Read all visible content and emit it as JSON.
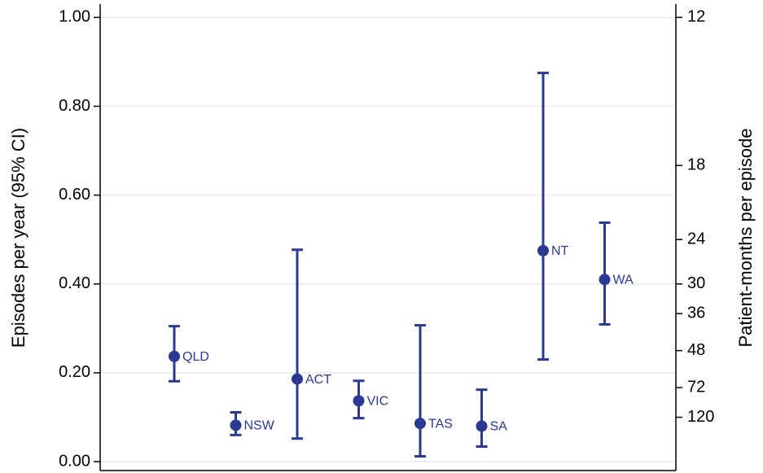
{
  "chart_data": {
    "type": "errorbar-dot",
    "ylabel": "Episodes per year (95% CI)",
    "y2label": "Patient-months per episode",
    "categories": [
      "QLD",
      "NSW",
      "ACT",
      "VIC",
      "TAS",
      "SA",
      "NT",
      "WA"
    ],
    "series": [
      {
        "name": "Episodes per year",
        "color": "#2b3990",
        "values": [
          0.237,
          0.082,
          0.186,
          0.137,
          0.086,
          0.08,
          0.475,
          0.41
        ],
        "lower": [
          0.181,
          0.06,
          0.052,
          0.098,
          0.012,
          0.034,
          0.23,
          0.309
        ],
        "upper": [
          0.305,
          0.111,
          0.477,
          0.182,
          0.307,
          0.162,
          0.875,
          0.538
        ]
      }
    ],
    "ylim": [
      -0.02,
      1.03
    ],
    "yticks": [
      {
        "value": 0,
        "label": "0.00"
      },
      {
        "value": 0.2,
        "label": "0.20"
      },
      {
        "value": 0.4,
        "label": "0.40"
      },
      {
        "value": 0.6,
        "label": "0.60"
      },
      {
        "value": 0.8,
        "label": "0.80"
      },
      {
        "value": 1,
        "label": "1.00"
      }
    ],
    "y2_transform": {
      "type": "reciprocal",
      "numerator": 12
    },
    "y2ticks": [
      12,
      18,
      24,
      30,
      36,
      48,
      72,
      120
    ],
    "grid": true,
    "grid_color": "#e3ecee"
  }
}
